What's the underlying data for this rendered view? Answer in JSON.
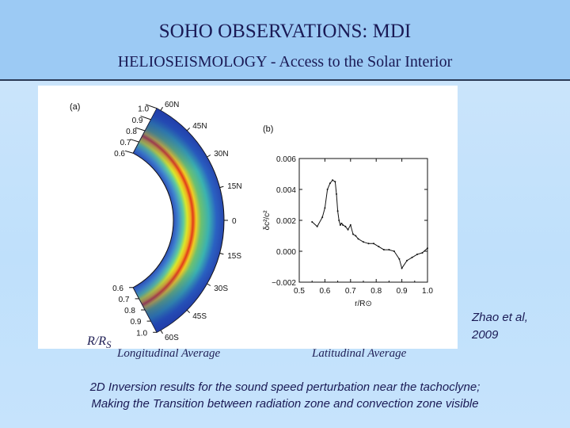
{
  "header": {
    "title": "SOHO OBSERVATIONS: MDI",
    "subtitle": "HELIOSEISMOLOGY - Access to the Solar Interior"
  },
  "figure": {
    "panel_a": {
      "label": "(a)",
      "radius_ticks_top": [
        "1.0",
        "0.9",
        "0.8",
        "0.7",
        "0.6"
      ],
      "radius_ticks_bottom": [
        "0.6",
        "0.7",
        "0.8",
        "0.9",
        "1.0"
      ],
      "latitude_labels": [
        "60N",
        "45N",
        "30N",
        "15N",
        "0",
        "15S",
        "30S",
        "45S",
        "60S"
      ]
    },
    "panel_b": {
      "label": "(b)"
    }
  },
  "captions": {
    "rrs_main": "R/R",
    "rrs_sub": "S",
    "longitudinal": "Longitudinal Average",
    "latitudinal": "Latitudinal Average"
  },
  "credit": {
    "line1": "Zhao et al,",
    "line2": "2009"
  },
  "description": {
    "line1": "2D Inversion results for the sound  speed perturbation near the tachoclyne;",
    "line2": "Making the Transition between radiation zone and convection zone visible"
  },
  "chart_data": {
    "type": "line",
    "title": "(b)",
    "xlabel": "r/R⊙",
    "ylabel": "δc²/c²",
    "xlim": [
      0.5,
      1.0
    ],
    "ylim": [
      -0.002,
      0.006
    ],
    "xticks": [
      "0.5",
      "0.6",
      "0.7",
      "0.8",
      "0.9",
      "1.0"
    ],
    "yticks": [
      "−0.002",
      "0.000",
      "0.002",
      "0.004",
      "0.006"
    ],
    "x": [
      0.55,
      0.57,
      0.59,
      0.6,
      0.61,
      0.62,
      0.63,
      0.64,
      0.645,
      0.65,
      0.655,
      0.66,
      0.665,
      0.67,
      0.68,
      0.69,
      0.7,
      0.71,
      0.72,
      0.73,
      0.75,
      0.77,
      0.79,
      0.81,
      0.83,
      0.85,
      0.87,
      0.89,
      0.9,
      0.92,
      0.94,
      0.96,
      0.98,
      1.0
    ],
    "y": [
      0.0019,
      0.0016,
      0.0022,
      0.0028,
      0.004,
      0.0044,
      0.0046,
      0.0045,
      0.0037,
      0.0026,
      0.002,
      0.0017,
      0.0018,
      0.0017,
      0.0016,
      0.0014,
      0.0017,
      0.0011,
      0.001,
      0.0008,
      0.0006,
      0.0005,
      0.0005,
      0.0003,
      0.0001,
      0.0001,
      0.0,
      -0.0005,
      -0.0011,
      -0.0006,
      -0.0004,
      -0.0002,
      -0.0001,
      0.0002
    ]
  }
}
